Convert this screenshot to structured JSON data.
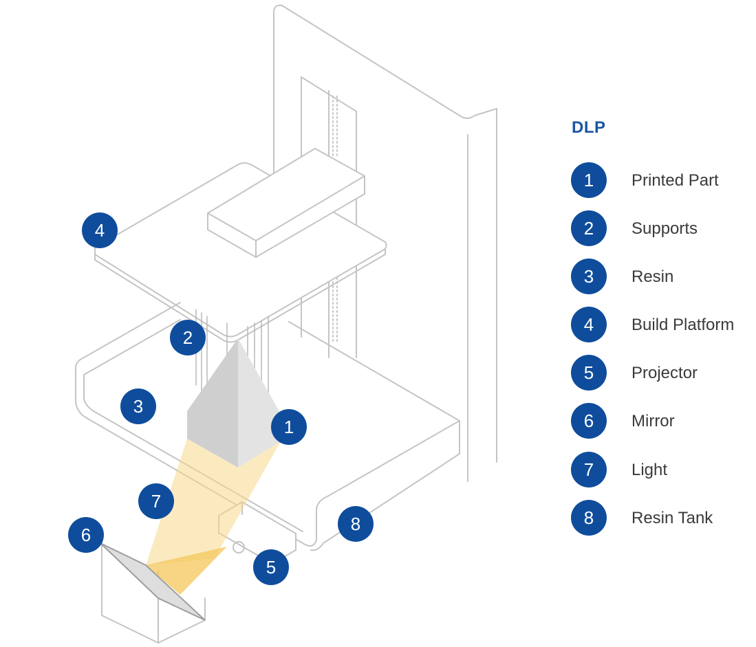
{
  "legend": {
    "title": "DLP",
    "items": [
      {
        "number": "1",
        "label": "Printed Part"
      },
      {
        "number": "2",
        "label": "Supports"
      },
      {
        "number": "3",
        "label": "Resin"
      },
      {
        "number": "4",
        "label": "Build Platform"
      },
      {
        "number": "5",
        "label": "Projector"
      },
      {
        "number": "6",
        "label": "Mirror"
      },
      {
        "number": "7",
        "label": "Light"
      },
      {
        "number": "8",
        "label": "Resin Tank"
      }
    ]
  },
  "callouts": [
    "1",
    "2",
    "3",
    "4",
    "5",
    "6",
    "7",
    "8"
  ],
  "colors": {
    "badge": "#0f4d9c",
    "title": "#1a56a4",
    "line": "#bdbdbd",
    "light": "#f7d88c",
    "part": "#d2d2d2"
  }
}
